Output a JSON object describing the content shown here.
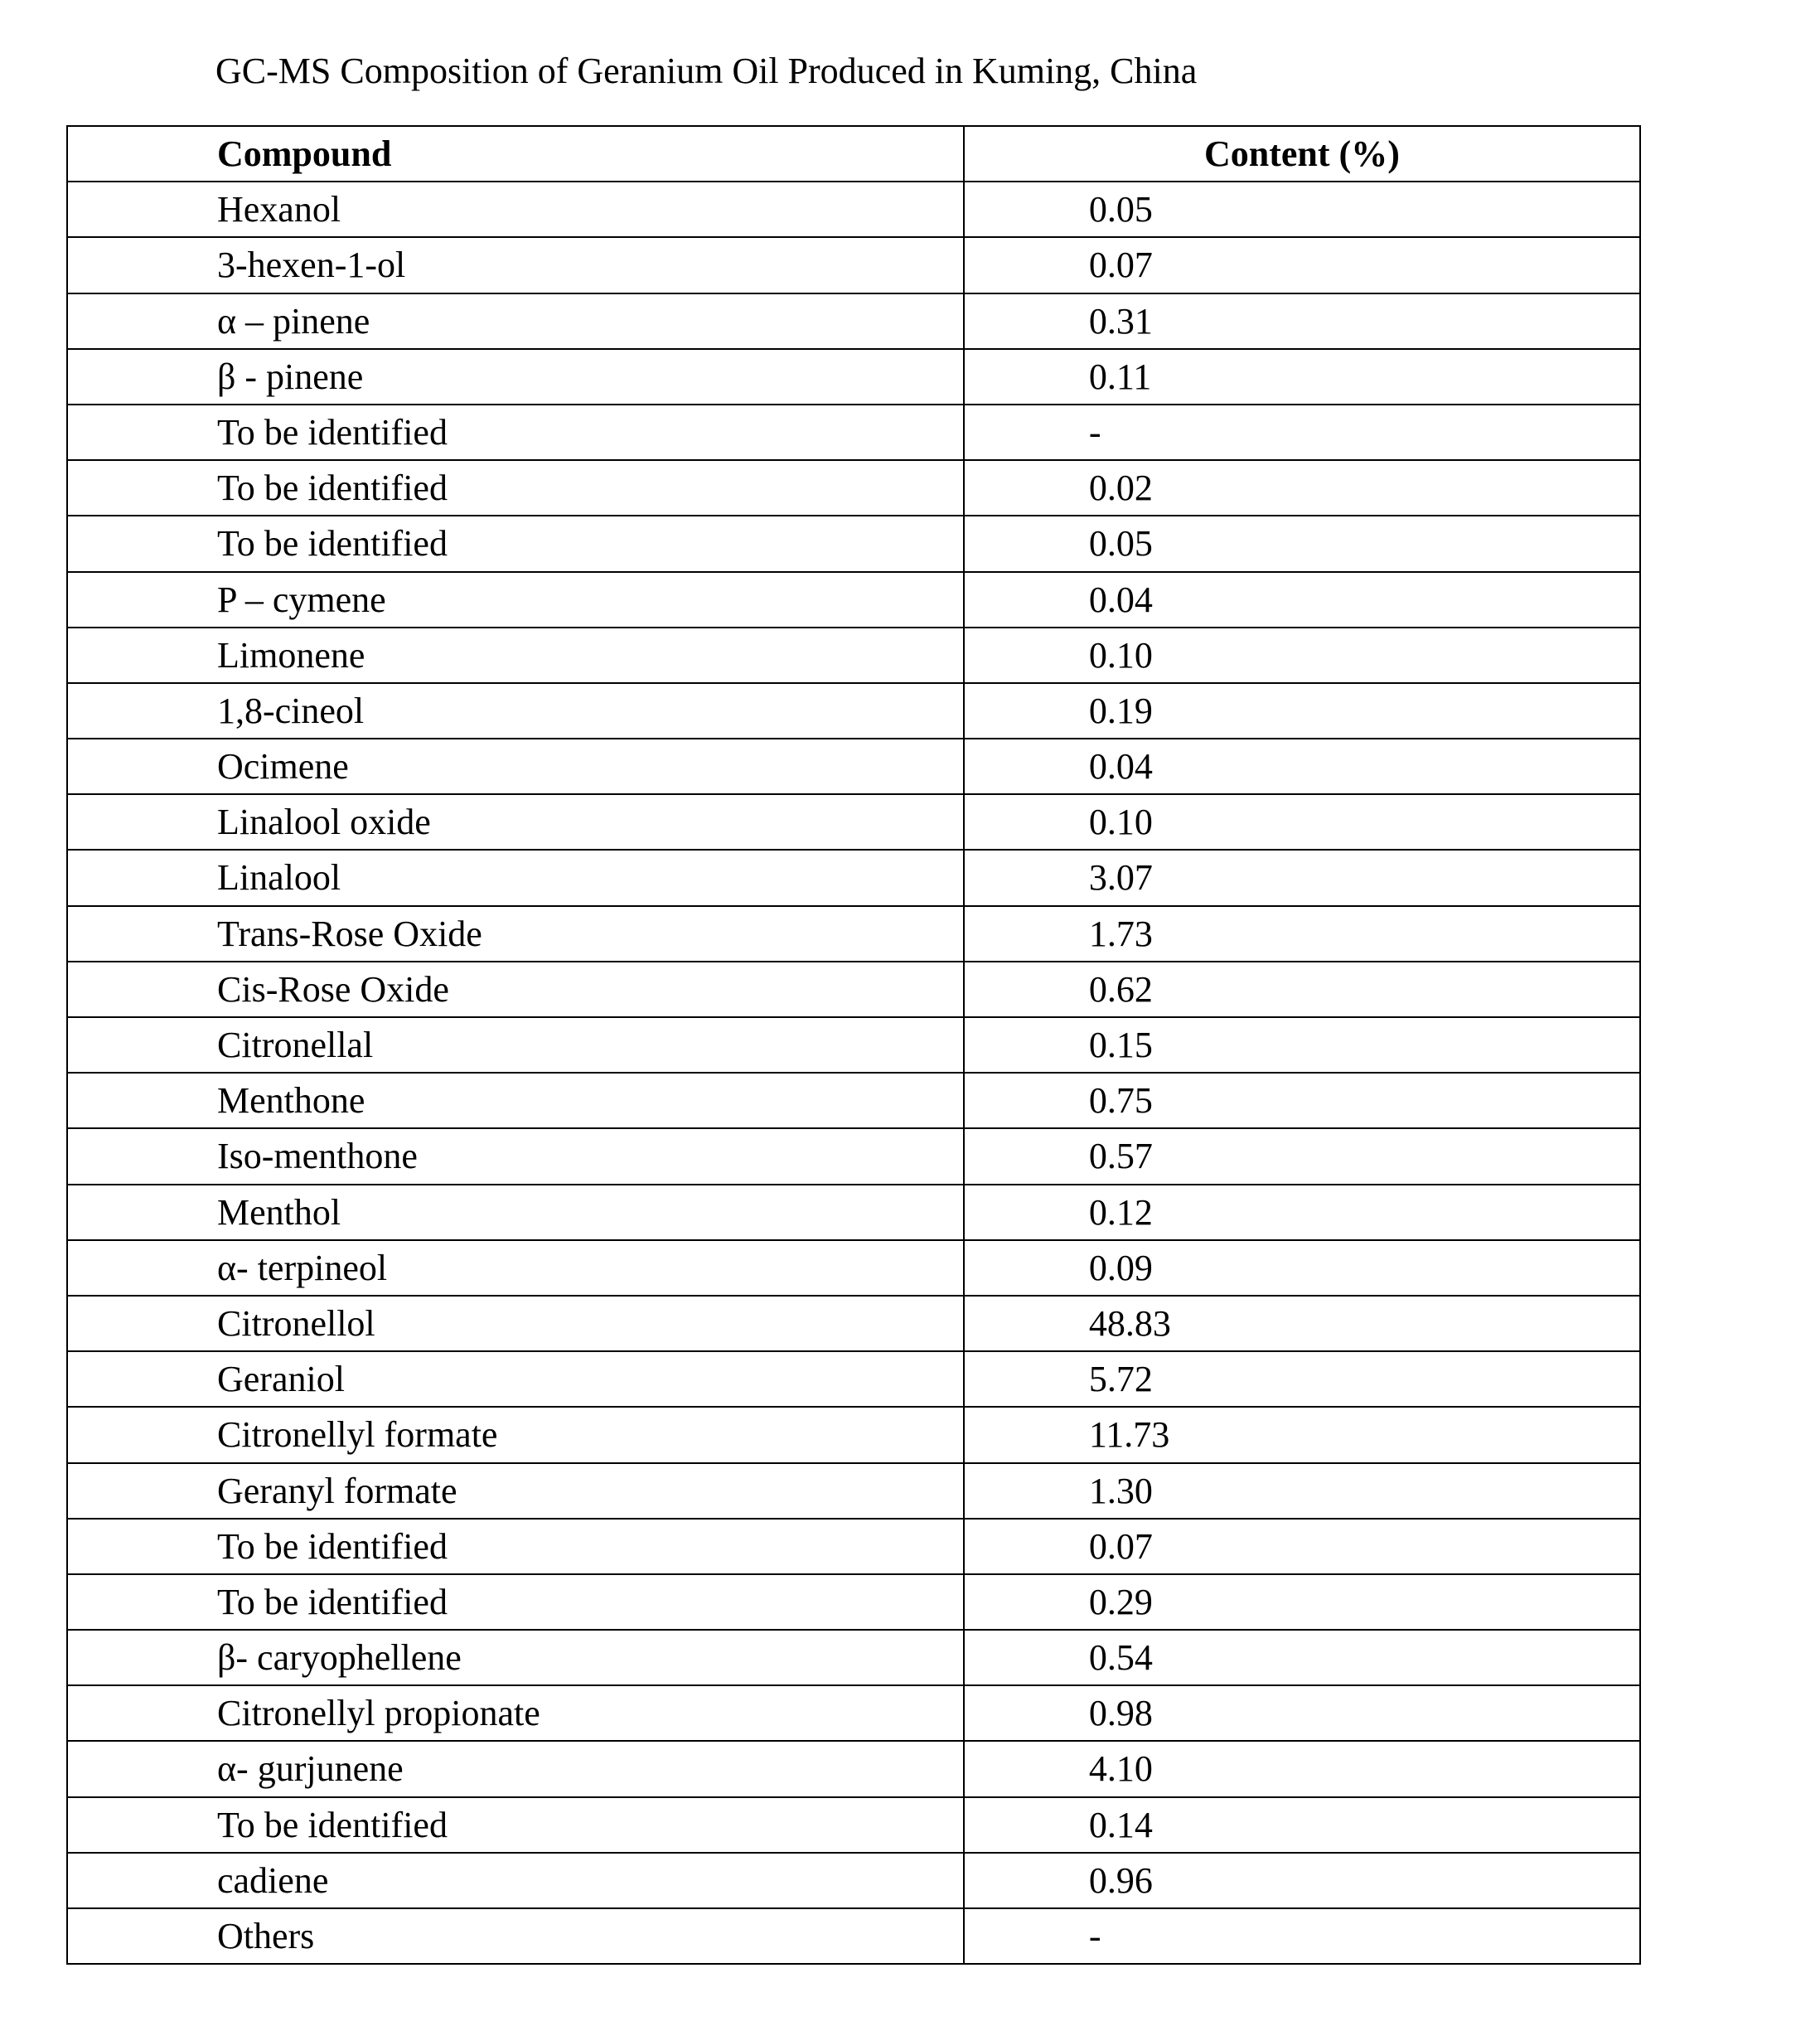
{
  "title": "GC-MS Composition of Geranium Oil Produced in Kuming, China",
  "table": {
    "type": "table",
    "columns": [
      "Compound",
      "Content (%)"
    ],
    "column_widths": [
      "57%",
      "43%"
    ],
    "header_alignments": [
      "left",
      "center"
    ],
    "cell_alignments": [
      "left",
      "left"
    ],
    "title_fontsize": 44,
    "cell_fontsize": 44,
    "font_family": "Times New Roman",
    "border_color": "#000000",
    "border_width": 2,
    "background_color": "#ffffff",
    "text_color": "#000000",
    "rows": [
      [
        "Hexanol",
        "0.05"
      ],
      [
        "3-hexen-1-ol",
        "0.07"
      ],
      [
        "α – pinene",
        "0.31"
      ],
      [
        "β  - pinene",
        "0.11"
      ],
      [
        "To be identified",
        "-"
      ],
      [
        "To be identified",
        "0.02"
      ],
      [
        "To be identified",
        "0.05"
      ],
      [
        "P – cymene",
        "0.04"
      ],
      [
        "Limonene",
        "0.10"
      ],
      [
        "1,8-cineol",
        "0.19"
      ],
      [
        "Ocimene",
        "0.04"
      ],
      [
        "Linalool oxide",
        "0.10"
      ],
      [
        "Linalool",
        "3.07"
      ],
      [
        "Trans-Rose Oxide",
        "1.73"
      ],
      [
        "Cis-Rose Oxide",
        "0.62"
      ],
      [
        "Citronellal",
        "0.15"
      ],
      [
        "Menthone",
        "0.75"
      ],
      [
        "Iso-menthone",
        "0.57"
      ],
      [
        "Menthol",
        "0.12"
      ],
      [
        "α- terpineol",
        "0.09"
      ],
      [
        "Citronellol",
        "48.83"
      ],
      [
        "Geraniol",
        "5.72"
      ],
      [
        "Citronellyl formate",
        "11.73"
      ],
      [
        "Geranyl formate",
        "1.30"
      ],
      [
        "To be identified",
        "0.07"
      ],
      [
        "To be identified",
        "0.29"
      ],
      [
        "β- caryophellene",
        "0.54"
      ],
      [
        "Citronellyl propionate",
        "0.98"
      ],
      [
        "α- gurjunene",
        "4.10"
      ],
      [
        "To be identified",
        "0.14"
      ],
      [
        "cadiene",
        "0.96"
      ],
      [
        "Others",
        "-"
      ]
    ]
  }
}
